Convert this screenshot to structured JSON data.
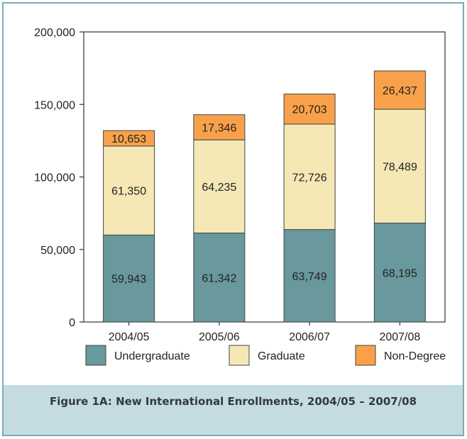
{
  "chart_data": {
    "type": "bar",
    "stacked": true,
    "categories": [
      "2004/05",
      "2005/06",
      "2006/07",
      "2007/08"
    ],
    "series": [
      {
        "name": "Undergraduate",
        "color": "#69989d",
        "values": [
          59943,
          61342,
          63749,
          68195
        ],
        "labels": [
          "59,943",
          "61,342",
          "63,749",
          "68,195"
        ]
      },
      {
        "name": "Graduate",
        "color": "#f5e8b5",
        "values": [
          61350,
          64235,
          72726,
          78489
        ],
        "labels": [
          "61,350",
          "64,235",
          "72,726",
          "78,489"
        ]
      },
      {
        "name": "Non-Degree",
        "color": "#f9a14a",
        "values": [
          10653,
          17346,
          20703,
          26437
        ],
        "labels": [
          "10,653",
          "17,346",
          "20,703",
          "26,437"
        ]
      }
    ],
    "ylim": [
      0,
      200000
    ],
    "yticks": [
      0,
      50000,
      100000,
      150000,
      200000
    ],
    "ytick_labels": [
      "0",
      "50,000",
      "100,000",
      "150,000",
      "200,000"
    ],
    "grid": false,
    "legend_position": "bottom"
  },
  "caption": "Figure 1A: New International Enrollments, 2004/05 – 2007/08",
  "colors": {
    "frame_border": "#7fa9b5",
    "caption_band": "#c4dbe0",
    "bar_outline": "#444444"
  }
}
